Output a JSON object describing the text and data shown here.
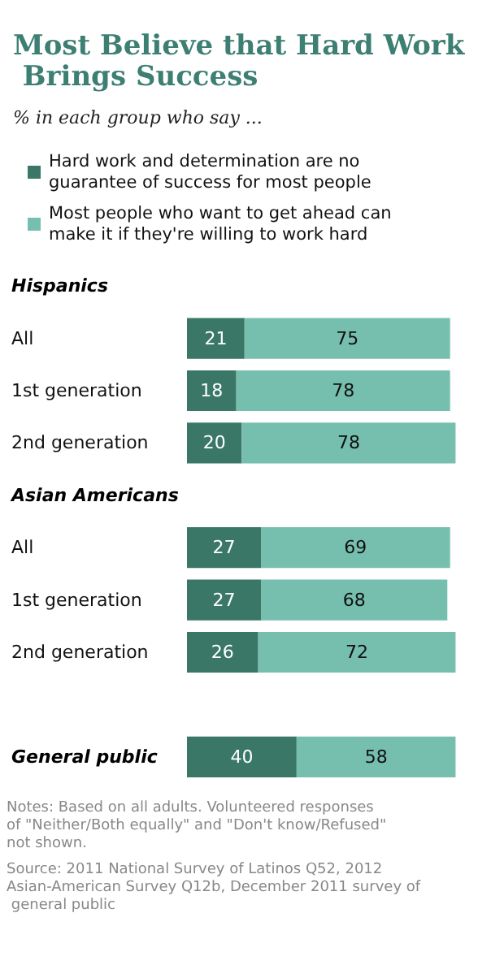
{
  "chart_data": {
    "type": "bar",
    "orientation": "horizontal",
    "title": "Most Believe that Hard Work Brings Success",
    "subtitle": "% in each group who say ...",
    "categories": [
      "Hispanics",
      "All",
      "1st generation",
      "2nd generation",
      "Asian Americans",
      "All",
      "1st generation",
      "2nd generation",
      null,
      "General public"
    ],
    "series": [
      {
        "name": "Hard work and determination are no guarantee of success for most people",
        "color": "#3a7767",
        "values": [
          null,
          21,
          18,
          20,
          null,
          27,
          27,
          26,
          null,
          40
        ]
      },
      {
        "name": "Most people who want to get ahead can make it if they're willing to work hard",
        "color": "#76bfae",
        "values": [
          null,
          75,
          78,
          78,
          null,
          69,
          68,
          72,
          null,
          58
        ]
      }
    ],
    "stacked": true,
    "data_labels": true,
    "legend": "top",
    "grid": false,
    "annotations": [
      "Notes: Based on all adults. Volunteered responses of \"Neither/Both equally\" and \"Don't know/Refused\" not shown.",
      "Source: 2011 National Survey of Latinos Q52, 2012 Asian-American Survey Q12b, December 2011 survey of general public"
    ]
  }
}
